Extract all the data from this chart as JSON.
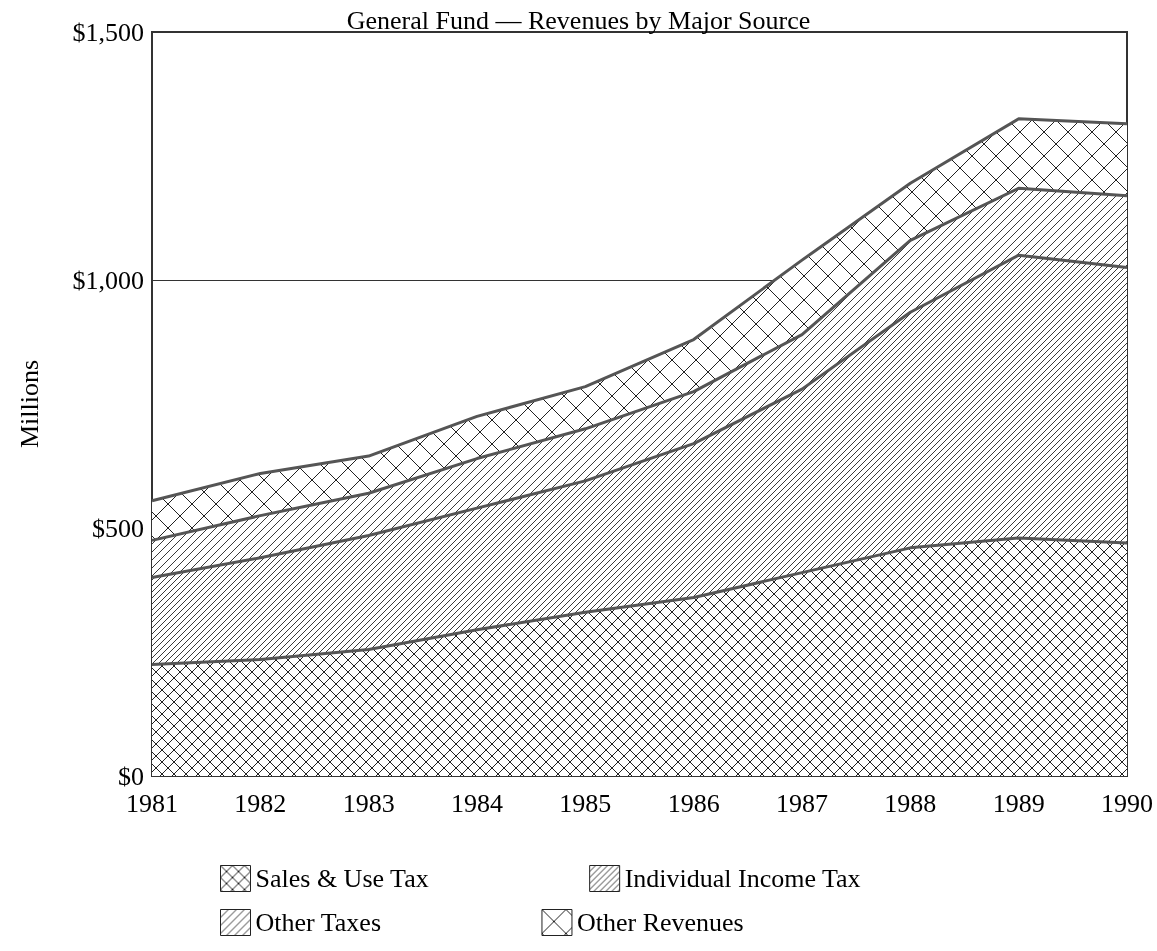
{
  "chart_data": {
    "type": "area",
    "title": "General Fund — Revenues by Major Source",
    "ylabel": "Millions",
    "categories": [
      "1981",
      "1982",
      "1983",
      "1984",
      "1985",
      "1986",
      "1987",
      "1988",
      "1989",
      "1990"
    ],
    "stacked": true,
    "series": [
      {
        "name": "Sales & Use Tax",
        "color": "#555555",
        "values": [
          225,
          235,
          255,
          295,
          330,
          360,
          410,
          460,
          480,
          470
        ]
      },
      {
        "name": "Individual Income Tax",
        "color": "#555555",
        "values": [
          175,
          205,
          230,
          245,
          265,
          310,
          370,
          475,
          570,
          555
        ]
      },
      {
        "name": "Other Taxes",
        "color": "#555555",
        "values": [
          75,
          85,
          85,
          100,
          105,
          105,
          110,
          145,
          135,
          145
        ]
      },
      {
        "name": "Other Revenues",
        "color": "#555555",
        "values": [
          80,
          85,
          75,
          85,
          85,
          105,
          150,
          115,
          140,
          145
        ]
      }
    ],
    "ylim": [
      0,
      1500
    ],
    "yticks": [
      {
        "value": 0,
        "label": "$0"
      },
      {
        "value": 500,
        "label": "$500"
      },
      {
        "value": 1000,
        "label": "$1,000"
      },
      {
        "value": 1500,
        "label": "$1,500"
      }
    ],
    "grid": "y",
    "legend": "bottom"
  }
}
